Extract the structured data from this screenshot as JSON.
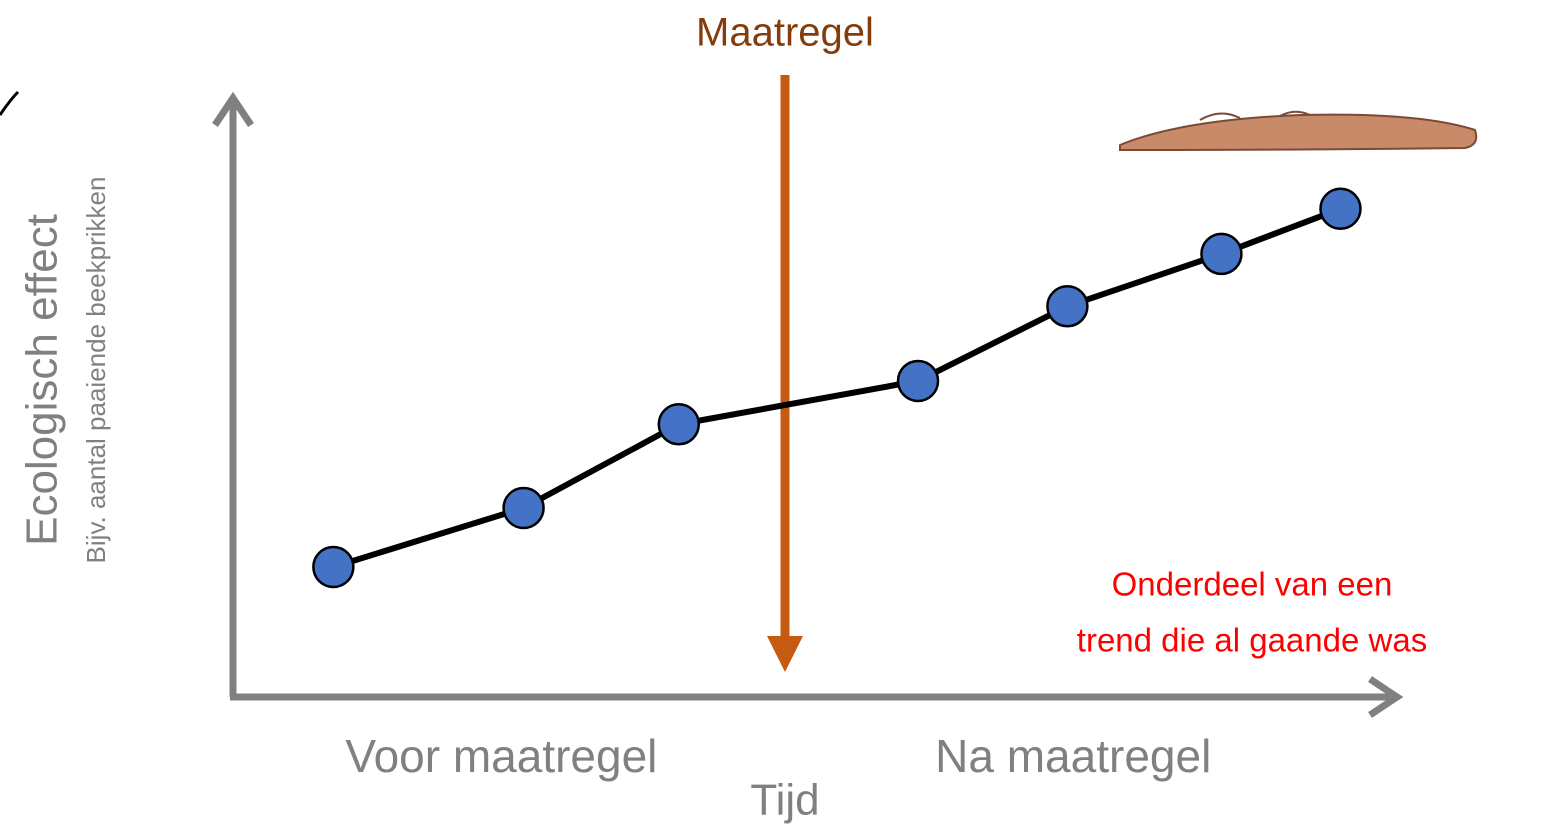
{
  "chart_data": {
    "type": "line",
    "xlabel": "Tijd",
    "ylabel": "Ecologisch effect",
    "ysublabel": "Bijv. aantal paaiende beekprikken",
    "x": [
      8.6,
      24.9,
      38.2,
      58.7,
      71.5,
      84.7,
      94.9
    ],
    "series": [
      {
        "color": "#4472c4",
        "values": [
          21.6,
          31.4,
          45.3,
          52.5,
          64.9,
          73.6,
          81.1
        ]
      }
    ],
    "xlim": [
      0,
      100
    ],
    "ylim": [
      0,
      100
    ],
    "periods": [
      {
        "label": "Voor maatregel",
        "x": 23
      },
      {
        "label": "Na maatregel",
        "x": 72
      }
    ],
    "intervention": {
      "label": "Maatregel",
      "x": 47.3,
      "color": "#c55a11"
    },
    "note": {
      "lines": [
        "Onderdeel van een",
        "trend die al gaande was"
      ],
      "color": "#ff0000"
    }
  }
}
